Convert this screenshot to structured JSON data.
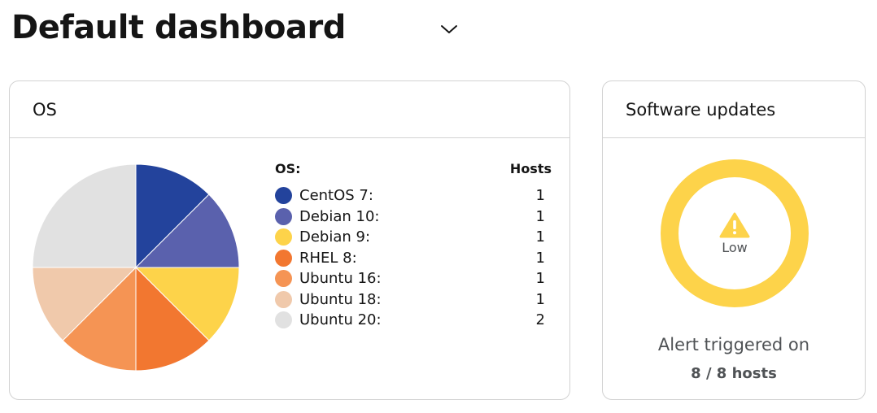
{
  "header": {
    "title": "Default dashboard"
  },
  "os_card": {
    "title": "OS",
    "legend_header_label": "OS:",
    "legend_header_value": "Hosts",
    "chart_data": {
      "type": "pie",
      "categories": [
        "CentOS 7:",
        "Debian 10:",
        "Debian 9:",
        "RHEL 8:",
        "Ubuntu 16:",
        "Ubuntu 18:",
        "Ubuntu 20:"
      ],
      "values": [
        1,
        1,
        1,
        1,
        1,
        1,
        2
      ],
      "colors": [
        "#23439c",
        "#5a61ad",
        "#fdd34a",
        "#f27730",
        "#f59454",
        "#f0c9ab",
        "#e1e1e1"
      ]
    }
  },
  "software_card": {
    "title": "Software updates",
    "status": "Low",
    "status_icon": "warning-icon",
    "ring_color": "#fdd34a",
    "alert_text": "Alert triggered on",
    "alert_count": "8 / 8 hosts"
  }
}
